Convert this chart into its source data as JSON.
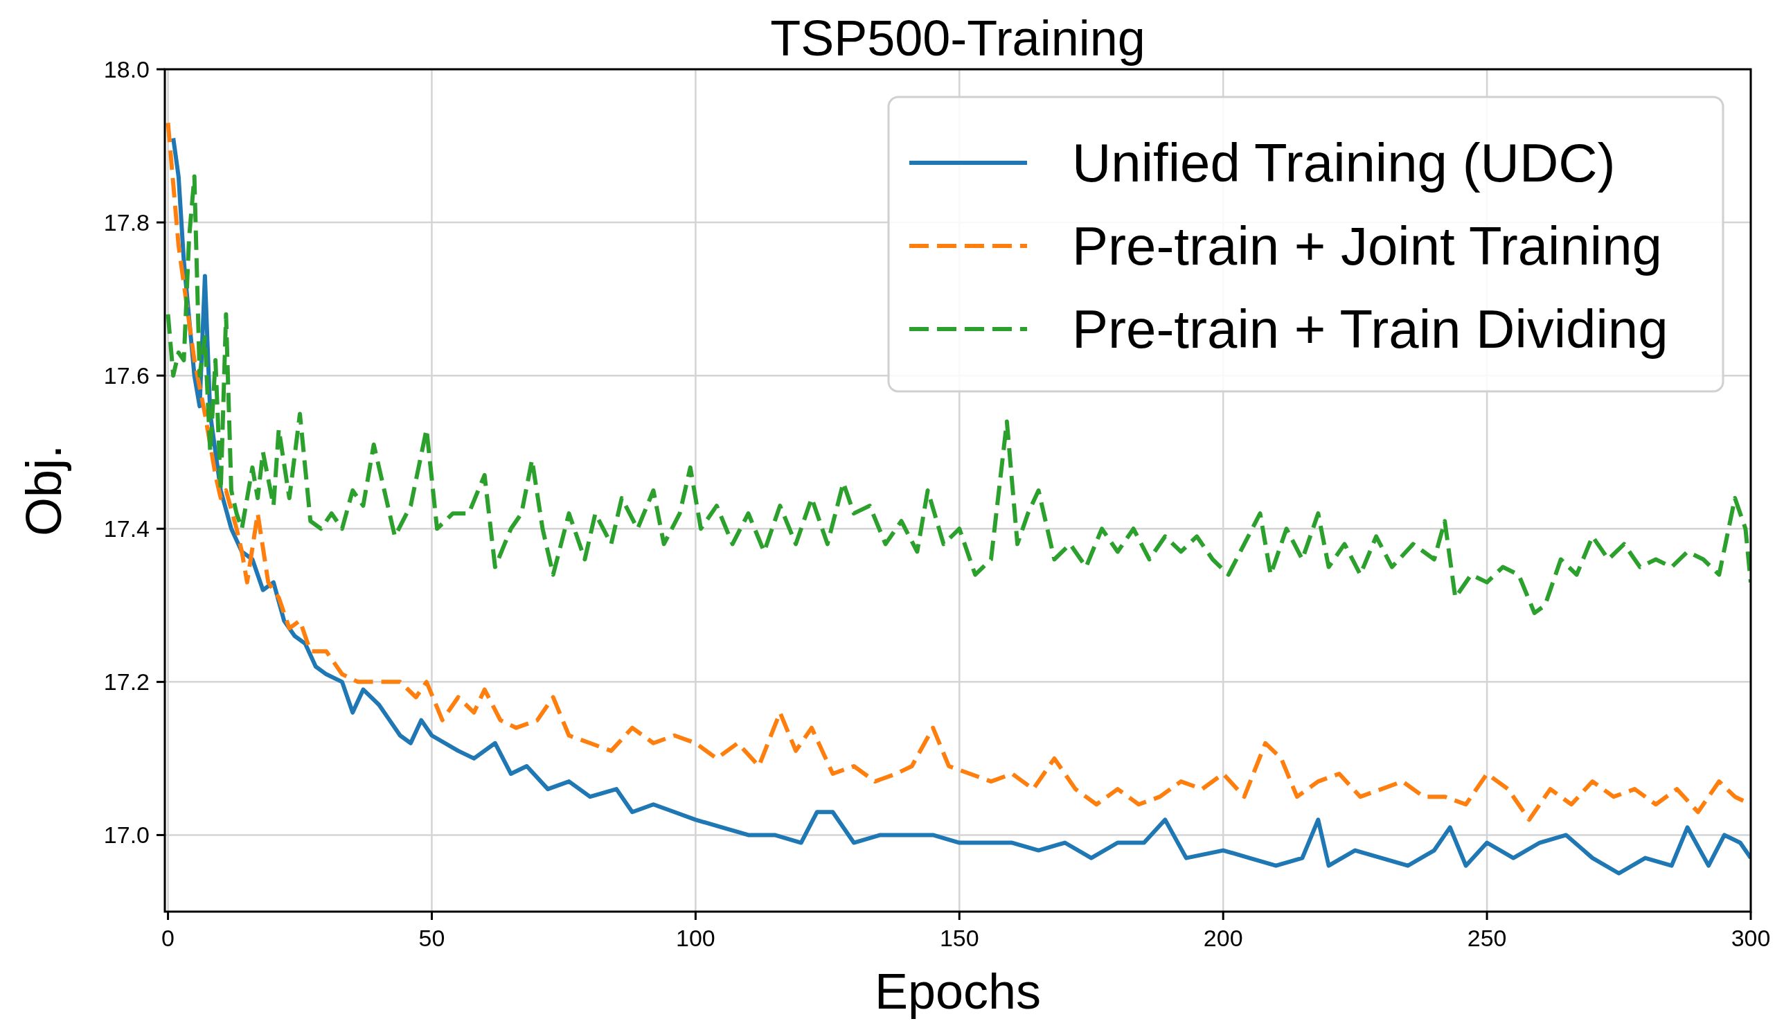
{
  "chart_data": {
    "type": "line",
    "title": "TSP500-Training",
    "xlabel": "Epochs",
    "ylabel": "Obj.",
    "xlim": [
      -0.6,
      300
    ],
    "xticks": [
      0,
      50,
      100,
      150,
      200,
      250,
      300
    ],
    "ylim": [
      16.9,
      18.0
    ],
    "yticks": [
      {
        "value": 17,
        "label": "17.0"
      },
      17.2,
      17.4,
      17.6,
      17.8,
      {
        "value": 18,
        "label": "18.0"
      }
    ],
    "grid": true,
    "legend": "top right",
    "series": [
      {
        "name": "Unified Training (UDC)",
        "color": "#1f77b4",
        "line_style": "solid",
        "x": [
          1,
          2,
          3,
          5,
          6,
          7,
          8,
          10,
          12,
          14,
          16,
          18,
          20,
          22,
          24,
          26,
          28,
          30,
          33,
          35,
          37,
          40,
          42,
          44,
          46,
          48,
          50,
          55,
          58,
          62,
          65,
          68,
          72,
          76,
          80,
          85,
          88,
          92,
          96,
          100,
          105,
          110,
          115,
          120,
          123,
          126,
          130,
          135,
          140,
          145,
          150,
          155,
          160,
          165,
          170,
          175,
          180,
          185,
          189,
          193,
          200,
          205,
          210,
          215,
          218,
          220,
          225,
          230,
          235,
          240,
          243,
          246,
          250,
          255,
          260,
          265,
          270,
          275,
          280,
          285,
          288,
          292,
          295,
          298,
          300
        ],
        "values": [
          17.91,
          17.86,
          17.75,
          17.6,
          17.56,
          17.73,
          17.55,
          17.45,
          17.4,
          17.37,
          17.36,
          17.32,
          17.33,
          17.28,
          17.26,
          17.25,
          17.22,
          17.21,
          17.2,
          17.16,
          17.19,
          17.17,
          17.15,
          17.13,
          17.12,
          17.15,
          17.13,
          17.11,
          17.1,
          17.12,
          17.08,
          17.09,
          17.06,
          17.07,
          17.05,
          17.06,
          17.03,
          17.04,
          17.03,
          17.02,
          17.01,
          17.0,
          17.0,
          16.99,
          17.03,
          17.03,
          16.99,
          17.0,
          17.0,
          17.0,
          16.99,
          16.99,
          16.99,
          16.98,
          16.99,
          16.97,
          16.99,
          16.99,
          17.02,
          16.97,
          16.98,
          16.97,
          16.96,
          16.97,
          17.02,
          16.96,
          16.98,
          16.97,
          16.96,
          16.98,
          17.01,
          16.96,
          16.99,
          16.97,
          16.99,
          17.0,
          16.97,
          16.95,
          16.97,
          16.96,
          17.01,
          16.96,
          17.0,
          16.99,
          16.97
        ]
      },
      {
        "name": "Pre-train + Joint Training",
        "color": "#ff7f0e",
        "line_style": "dashed",
        "x": [
          0,
          1,
          2,
          3,
          5,
          7,
          9,
          10,
          11,
          13,
          14,
          15,
          17,
          19,
          21,
          23,
          25,
          27,
          30,
          33,
          36,
          40,
          44,
          47,
          49,
          52,
          55,
          58,
          60,
          63,
          66,
          70,
          73,
          76,
          80,
          84,
          88,
          92,
          96,
          100,
          104,
          108,
          112,
          116,
          119,
          122,
          126,
          130,
          134,
          138,
          141,
          145,
          148,
          152,
          156,
          160,
          164,
          168,
          172,
          176,
          180,
          184,
          188,
          192,
          196,
          200,
          204,
          208,
          211,
          214,
          218,
          222,
          226,
          230,
          234,
          238,
          242,
          246,
          250,
          254,
          258,
          262,
          266,
          270,
          274,
          278,
          282,
          286,
          290,
          294,
          297,
          300
        ],
        "values": [
          17.93,
          17.85,
          17.77,
          17.72,
          17.62,
          17.55,
          17.47,
          17.44,
          17.45,
          17.4,
          17.37,
          17.33,
          17.42,
          17.33,
          17.31,
          17.27,
          17.28,
          17.24,
          17.24,
          17.21,
          17.2,
          17.2,
          17.2,
          17.18,
          17.2,
          17.15,
          17.18,
          17.16,
          17.19,
          17.15,
          17.14,
          17.15,
          17.18,
          17.13,
          17.12,
          17.11,
          17.14,
          17.12,
          17.13,
          17.12,
          17.1,
          17.12,
          17.09,
          17.16,
          17.11,
          17.14,
          17.08,
          17.09,
          17.07,
          17.08,
          17.09,
          17.14,
          17.09,
          17.08,
          17.07,
          17.08,
          17.06,
          17.1,
          17.06,
          17.04,
          17.06,
          17.04,
          17.05,
          17.07,
          17.06,
          17.08,
          17.05,
          17.12,
          17.1,
          17.05,
          17.07,
          17.08,
          17.05,
          17.06,
          17.07,
          17.05,
          17.05,
          17.04,
          17.08,
          17.06,
          17.02,
          17.06,
          17.04,
          17.07,
          17.05,
          17.06,
          17.04,
          17.06,
          17.03,
          17.07,
          17.05,
          17.04
        ]
      },
      {
        "name": "Pre-train + Train Dividing",
        "color": "#2ca02c",
        "line_style": "dashed",
        "x": [
          0,
          1,
          2,
          3,
          4,
          5,
          6,
          7,
          8,
          9,
          10,
          11,
          12,
          13,
          14,
          16,
          17,
          18,
          20,
          21,
          23,
          25,
          27,
          29,
          31,
          33,
          35,
          37,
          39,
          41,
          43,
          46,
          49,
          51,
          54,
          57,
          60,
          62,
          65,
          67,
          69,
          71,
          73,
          76,
          79,
          81,
          84,
          86,
          89,
          92,
          94,
          97,
          99,
          101,
          104,
          107,
          110,
          113,
          116,
          119,
          122,
          125,
          128,
          130,
          133,
          136,
          139,
          142,
          144,
          147,
          150,
          153,
          156,
          159,
          161,
          163,
          165,
          168,
          171,
          174,
          177,
          180,
          183,
          186,
          189,
          192,
          195,
          198,
          201,
          204,
          207,
          209,
          212,
          215,
          218,
          220,
          223,
          226,
          229,
          232,
          236,
          240,
          242,
          244,
          247,
          250,
          253,
          256,
          259,
          261,
          264,
          267,
          270,
          273,
          276,
          279,
          282,
          285,
          288,
          291,
          294,
          297,
          299,
          300
        ],
        "values": [
          17.68,
          17.6,
          17.63,
          17.62,
          17.78,
          17.86,
          17.6,
          17.65,
          17.5,
          17.62,
          17.45,
          17.68,
          17.45,
          17.42,
          17.4,
          17.48,
          17.44,
          17.5,
          17.43,
          17.53,
          17.44,
          17.55,
          17.41,
          17.4,
          17.42,
          17.4,
          17.45,
          17.43,
          17.51,
          17.45,
          17.39,
          17.43,
          17.53,
          17.4,
          17.42,
          17.42,
          17.47,
          17.35,
          17.4,
          17.42,
          17.49,
          17.4,
          17.34,
          17.42,
          17.36,
          17.42,
          17.38,
          17.44,
          17.4,
          17.45,
          17.38,
          17.42,
          17.48,
          17.4,
          17.43,
          17.38,
          17.42,
          17.37,
          17.43,
          17.38,
          17.44,
          17.38,
          17.46,
          17.42,
          17.43,
          17.38,
          17.41,
          17.37,
          17.45,
          17.38,
          17.4,
          17.34,
          17.36,
          17.54,
          17.38,
          17.42,
          17.45,
          17.36,
          17.38,
          17.35,
          17.4,
          17.37,
          17.4,
          17.36,
          17.39,
          17.37,
          17.39,
          17.36,
          17.34,
          17.38,
          17.42,
          17.34,
          17.4,
          17.36,
          17.42,
          17.35,
          17.38,
          17.34,
          17.39,
          17.35,
          17.38,
          17.36,
          17.41,
          17.31,
          17.34,
          17.33,
          17.35,
          17.34,
          17.29,
          17.3,
          17.36,
          17.34,
          17.39,
          17.36,
          17.38,
          17.35,
          17.36,
          17.35,
          17.37,
          17.36,
          17.34,
          17.44,
          17.4,
          17.33
        ]
      }
    ]
  }
}
